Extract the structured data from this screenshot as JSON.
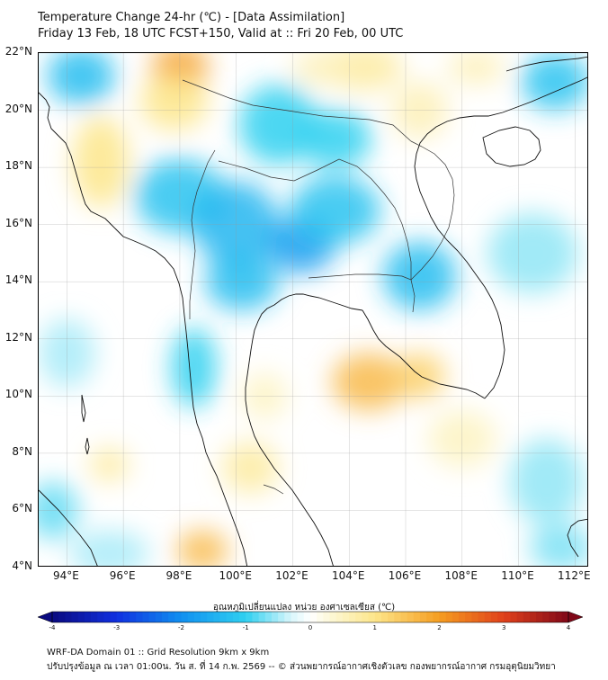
{
  "title": {
    "line1": "Temperature Change 24-hr (℃) - [Data Assimilation]",
    "line2": "Friday 13 Feb, 18 UTC FCST+150, Valid at :: Fri 20 Feb, 00 UTC"
  },
  "map": {
    "lon_range": [
      93,
      112.5
    ],
    "lat_range": [
      4,
      22
    ],
    "lat_ticks": [
      {
        "value": 22,
        "label": "22°N"
      },
      {
        "value": 20,
        "label": "20°N"
      },
      {
        "value": 18,
        "label": "18°N"
      },
      {
        "value": 16,
        "label": "16°N"
      },
      {
        "value": 14,
        "label": "14°N"
      },
      {
        "value": 12,
        "label": "12°N"
      },
      {
        "value": 10,
        "label": "10°N"
      },
      {
        "value": 8,
        "label": "8°N"
      },
      {
        "value": 6,
        "label": "6°N"
      },
      {
        "value": 4,
        "label": "4°N"
      }
    ],
    "lon_ticks": [
      {
        "value": 94,
        "label": "94°E"
      },
      {
        "value": 96,
        "label": "96°E"
      },
      {
        "value": 98,
        "label": "98°E"
      },
      {
        "value": 100,
        "label": "100°E"
      },
      {
        "value": 102,
        "label": "102°E"
      },
      {
        "value": 104,
        "label": "104°E"
      },
      {
        "value": 106,
        "label": "106°E"
      },
      {
        "value": 108,
        "label": "108°E"
      },
      {
        "value": 110,
        "label": "110°E"
      },
      {
        "value": 112,
        "label": "112°E"
      }
    ],
    "field_blobs": [
      {
        "lon": 94.5,
        "lat": 21.2,
        "value": -1.3,
        "rx": 1.2,
        "ry": 1.0
      },
      {
        "lon": 98.0,
        "lat": 17.0,
        "value": -1.2,
        "rx": 1.6,
        "ry": 1.3
      },
      {
        "lon": 100.0,
        "lat": 16.0,
        "value": -1.4,
        "rx": 1.5,
        "ry": 1.5
      },
      {
        "lon": 102.3,
        "lat": 15.3,
        "value": -1.8,
        "rx": 1.2,
        "ry": 1.0
      },
      {
        "lon": 103.5,
        "lat": 16.5,
        "value": -1.2,
        "rx": 1.6,
        "ry": 1.2
      },
      {
        "lon": 100.2,
        "lat": 14.0,
        "value": -1.3,
        "rx": 1.3,
        "ry": 1.0
      },
      {
        "lon": 101.5,
        "lat": 19.5,
        "value": -1.0,
        "rx": 1.4,
        "ry": 1.4
      },
      {
        "lon": 106.5,
        "lat": 14.2,
        "value": -1.3,
        "rx": 1.3,
        "ry": 1.2
      },
      {
        "lon": 98.5,
        "lat": 11.0,
        "value": -1.0,
        "rx": 0.8,
        "ry": 1.4
      },
      {
        "lon": 103.5,
        "lat": 19.0,
        "value": -1.0,
        "rx": 1.3,
        "ry": 1.0
      },
      {
        "lon": 111.3,
        "lat": 21.0,
        "value": -1.2,
        "rx": 1.2,
        "ry": 1.0
      },
      {
        "lon": 110.5,
        "lat": 15.0,
        "value": -0.6,
        "rx": 1.6,
        "ry": 1.4
      },
      {
        "lon": 93.5,
        "lat": 6.0,
        "value": -0.8,
        "rx": 0.9,
        "ry": 1.0
      },
      {
        "lon": 94.0,
        "lat": 11.5,
        "value": -0.5,
        "rx": 1.0,
        "ry": 1.2
      },
      {
        "lon": 111.0,
        "lat": 7.0,
        "value": -0.6,
        "rx": 1.3,
        "ry": 1.5
      },
      {
        "lon": 111.5,
        "lat": 4.7,
        "value": -0.7,
        "rx": 1.1,
        "ry": 0.8
      },
      {
        "lon": 95.5,
        "lat": 4.5,
        "value": -0.5,
        "rx": 1.4,
        "ry": 0.8
      },
      {
        "lon": 98.0,
        "lat": 21.5,
        "value": 2.0,
        "rx": 1.0,
        "ry": 0.8
      },
      {
        "lon": 97.8,
        "lat": 20.3,
        "value": 1.0,
        "rx": 1.2,
        "ry": 1.0
      },
      {
        "lon": 95.2,
        "lat": 18.2,
        "value": 1.0,
        "rx": 1.0,
        "ry": 1.6
      },
      {
        "lon": 104.7,
        "lat": 10.5,
        "value": 1.6,
        "rx": 1.3,
        "ry": 1.0
      },
      {
        "lon": 106.5,
        "lat": 10.7,
        "value": 1.3,
        "rx": 0.9,
        "ry": 0.8
      },
      {
        "lon": 98.8,
        "lat": 4.6,
        "value": 1.6,
        "rx": 0.9,
        "ry": 0.7
      },
      {
        "lon": 95.5,
        "lat": 7.6,
        "value": 0.8,
        "rx": 0.7,
        "ry": 0.6
      },
      {
        "lon": 104.5,
        "lat": 21.5,
        "value": 0.8,
        "rx": 1.4,
        "ry": 0.8
      },
      {
        "lon": 106.5,
        "lat": 20.0,
        "value": 0.6,
        "rx": 1.0,
        "ry": 1.0
      },
      {
        "lon": 100.5,
        "lat": 7.5,
        "value": 0.8,
        "rx": 1.0,
        "ry": 0.9
      },
      {
        "lon": 103.0,
        "lat": 21.5,
        "value": 0.6,
        "rx": 1.0,
        "ry": 0.6
      },
      {
        "lon": 108.5,
        "lat": 21.5,
        "value": 0.6,
        "rx": 1.0,
        "ry": 0.6
      },
      {
        "lon": 108.0,
        "lat": 8.5,
        "value": 0.5,
        "rx": 1.2,
        "ry": 1.0
      },
      {
        "lon": 101.0,
        "lat": 10.0,
        "value": 0.5,
        "rx": 0.8,
        "ry": 0.8
      }
    ],
    "colors": {
      "background": "#ffffff",
      "coast": "#111111",
      "border": "#333333",
      "grid": "#9a9a9a"
    }
  },
  "colorbar": {
    "label": "อุณหภูมิเปลี่ยนแปลง หน่วย องศาเซลเซียส (℃)",
    "min": -4,
    "max": 4,
    "ticks": [
      {
        "value": -4,
        "label": "-4"
      },
      {
        "value": -3,
        "label": "-3"
      },
      {
        "value": -2,
        "label": "-2"
      },
      {
        "value": -1,
        "label": "-1"
      },
      {
        "value": 0,
        "label": "0"
      },
      {
        "value": 1,
        "label": "1"
      },
      {
        "value": 2,
        "label": "2"
      },
      {
        "value": 3,
        "label": "3"
      },
      {
        "value": 4,
        "label": "4"
      }
    ],
    "color_stops": [
      {
        "value": -4,
        "color": "#0a0a80"
      },
      {
        "value": -3,
        "color": "#1030e0"
      },
      {
        "value": -2,
        "color": "#1090f0"
      },
      {
        "value": -1,
        "color": "#30d0f0"
      },
      {
        "value": -0.3,
        "color": "#d8f6fb"
      },
      {
        "value": 0,
        "color": "#ffffff"
      },
      {
        "value": 0.3,
        "color": "#fdf8d8"
      },
      {
        "value": 1,
        "color": "#fde68a"
      },
      {
        "value": 2,
        "color": "#f59d20"
      },
      {
        "value": 3,
        "color": "#e0401a"
      },
      {
        "value": 4,
        "color": "#800818"
      }
    ]
  },
  "footer": {
    "line1": "WRF-DA Domain 01 :: Grid Resolution 9km x 9km",
    "line2": "ปรับปรุงข้อมูล ณ เวลา 01:00น. วัน ส. ที่ 14 ก.พ. 2569 -- © ส่วนพยากรณ์อากาศเชิงตัวเลข กองพยากรณ์อากาศ กรมอุตุนิยมวิทยา"
  }
}
